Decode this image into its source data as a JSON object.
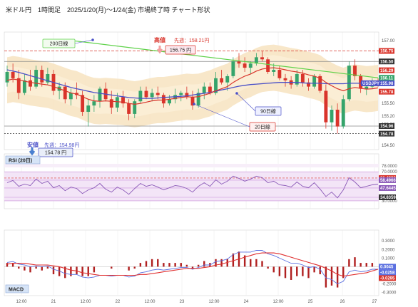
{
  "title": "米ドル円　1時間足　2025/1/20(月)〜1/24(金) 市場終了時 チャート形状",
  "colors": {
    "up": "#35a46b",
    "down": "#d9342b",
    "ma20": "#d9342b",
    "ma90": "#4a50c8",
    "ma200": "#5fd24a",
    "band": "#f7e3bf",
    "rsi_bg": "#f3e5f7",
    "macd_line": "#5a6fe0",
    "signal_line": "#e03030",
    "hist": "#b02020"
  },
  "chart_data": [
    {
      "type": "candlestick",
      "name": "price",
      "x_tick_labels": [
        "12:00",
        "21",
        "12:00",
        "22",
        "12:00",
        "23",
        "12:00",
        "24",
        "12:00",
        "25",
        "26",
        "27"
      ],
      "ylim": [
        154.4,
        157.2
      ],
      "y_tick_labels": [
        "157.00",
        "156.50",
        "156.00",
        "155.50",
        "155.20",
        "155.00",
        "154.50"
      ],
      "price_tags": [
        {
          "text": "156.75",
          "value": 156.75,
          "color": "#d9342b"
        },
        {
          "text": "156.50",
          "value": 156.5,
          "color": "#333333"
        },
        {
          "text": "156.29",
          "value": 156.29,
          "color": "#d9342b"
        },
        {
          "text": "156.11",
          "value": 156.11,
          "color": "#35a46b"
        },
        {
          "text": "155.98",
          "value": 155.98,
          "color": "#4a50c8"
        },
        {
          "text": "155.78",
          "value": 155.78,
          "color": "#d9342b"
        },
        {
          "text": "154.96",
          "value": 154.96,
          "color": "#333333"
        },
        {
          "text": "154.78",
          "value": 154.78,
          "color": "#333333"
        }
      ],
      "symbol_tag": "USDJPY",
      "annotations": {
        "ma200_label": "200日線",
        "ma90_label": "90日線",
        "ma20_label": "20日線",
        "high_label": "高値",
        "high_prev": "先週：158.21円",
        "high_value": "156.75 円",
        "low_label": "安値",
        "low_prev": "先週：154.98円",
        "low_value": "154.78 円"
      },
      "candles": [
        [
          156.0,
          156.4,
          155.9,
          156.25
        ],
        [
          156.25,
          156.45,
          156.0,
          156.1
        ],
        [
          156.1,
          156.3,
          155.6,
          155.75
        ],
        [
          155.75,
          156.2,
          155.7,
          156.05
        ],
        [
          156.05,
          156.3,
          155.8,
          155.9
        ],
        [
          155.9,
          156.4,
          155.85,
          156.3
        ],
        [
          156.3,
          156.4,
          155.9,
          156.0
        ],
        [
          156.0,
          156.35,
          155.95,
          156.2
        ],
        [
          156.2,
          156.3,
          155.7,
          155.8
        ],
        [
          155.8,
          156.0,
          155.6,
          155.9
        ],
        [
          155.9,
          156.0,
          155.5,
          155.6
        ],
        [
          155.6,
          155.85,
          155.45,
          155.75
        ],
        [
          155.75,
          156.0,
          155.6,
          155.7
        ],
        [
          155.7,
          155.8,
          155.2,
          155.3
        ],
        [
          155.3,
          155.6,
          154.95,
          155.45
        ],
        [
          155.45,
          155.7,
          155.3,
          155.55
        ],
        [
          155.55,
          155.9,
          155.4,
          155.85
        ],
        [
          155.85,
          156.0,
          155.55,
          155.6
        ],
        [
          155.6,
          155.8,
          155.25,
          155.4
        ],
        [
          155.4,
          155.75,
          155.3,
          155.65
        ],
        [
          155.65,
          155.8,
          155.4,
          155.5
        ],
        [
          155.5,
          155.6,
          155.1,
          155.25
        ],
        [
          155.25,
          155.6,
          155.15,
          155.55
        ],
        [
          155.55,
          155.9,
          155.5,
          155.8
        ],
        [
          155.8,
          155.9,
          155.6,
          155.65
        ],
        [
          155.65,
          155.85,
          155.55,
          155.75
        ],
        [
          155.75,
          155.9,
          155.6,
          155.7
        ],
        [
          155.7,
          155.75,
          155.4,
          155.5
        ],
        [
          155.5,
          155.7,
          155.45,
          155.6
        ],
        [
          155.6,
          155.85,
          155.5,
          155.7
        ],
        [
          155.7,
          155.8,
          155.55,
          155.75
        ],
        [
          155.75,
          155.9,
          155.6,
          155.65
        ],
        [
          155.65,
          155.8,
          155.35,
          155.45
        ],
        [
          155.45,
          155.85,
          155.4,
          155.75
        ],
        [
          155.75,
          156.0,
          155.6,
          155.9
        ],
        [
          155.9,
          156.0,
          155.7,
          155.75
        ],
        [
          155.75,
          156.25,
          155.7,
          156.1
        ],
        [
          156.1,
          156.3,
          155.95,
          156.0
        ],
        [
          156.0,
          156.2,
          155.8,
          156.15
        ],
        [
          156.15,
          156.6,
          156.1,
          156.5
        ],
        [
          156.5,
          156.7,
          156.35,
          156.45
        ],
        [
          156.45,
          156.6,
          156.25,
          156.35
        ],
        [
          156.35,
          156.5,
          156.2,
          156.45
        ],
        [
          156.45,
          156.7,
          156.4,
          156.6
        ],
        [
          156.6,
          156.75,
          156.5,
          156.55
        ],
        [
          156.55,
          156.6,
          156.2,
          156.25
        ],
        [
          156.25,
          156.45,
          156.15,
          156.3
        ],
        [
          156.3,
          156.4,
          156.05,
          156.1
        ],
        [
          156.1,
          156.2,
          155.9,
          156.05
        ],
        [
          156.05,
          156.15,
          155.85,
          155.95
        ],
        [
          155.95,
          156.3,
          155.9,
          156.2
        ],
        [
          156.2,
          156.3,
          155.9,
          156.0
        ],
        [
          156.0,
          156.1,
          155.8,
          155.9
        ],
        [
          155.9,
          156.2,
          155.85,
          156.15
        ],
        [
          156.15,
          156.2,
          155.75,
          155.8
        ],
        [
          155.8,
          155.95,
          154.9,
          155.05
        ],
        [
          155.05,
          155.45,
          154.85,
          155.35
        ],
        [
          155.35,
          155.5,
          154.78,
          154.95
        ],
        [
          154.95,
          155.7,
          154.9,
          155.6
        ],
        [
          155.6,
          156.5,
          155.55,
          156.4
        ],
        [
          156.4,
          156.55,
          156.05,
          156.15
        ],
        [
          156.15,
          156.2,
          155.75,
          155.85
        ],
        [
          155.85,
          156.0,
          155.7,
          155.9
        ],
        [
          155.9,
          156.1,
          155.85,
          156.0
        ],
        [
          156.0,
          156.1,
          155.9,
          155.98
        ]
      ],
      "ma20": [
        156.05,
        156.08,
        156.06,
        156.03,
        156.0,
        155.98,
        155.96,
        155.94,
        155.9,
        155.85,
        155.8,
        155.75,
        155.72,
        155.66,
        155.6,
        155.56,
        155.55,
        155.56,
        155.55,
        155.54,
        155.53,
        155.5,
        155.48,
        155.5,
        155.53,
        155.56,
        155.58,
        155.58,
        155.6,
        155.62,
        155.64,
        155.66,
        155.65,
        155.66,
        155.7,
        155.74,
        155.8,
        155.85,
        155.9,
        156.0,
        156.08,
        156.15,
        156.2,
        156.27,
        156.32,
        156.34,
        156.35,
        156.33,
        156.3,
        156.27,
        156.25,
        156.22,
        156.18,
        156.15,
        156.1,
        156.0,
        155.92,
        155.85,
        155.8,
        155.85,
        155.88,
        155.86,
        155.84,
        155.85,
        155.87
      ],
      "ma90": [
        156.3,
        156.27,
        156.24,
        156.2,
        156.16,
        156.12,
        156.08,
        156.04,
        156.0,
        155.96,
        155.92,
        155.88,
        155.85,
        155.82,
        155.79,
        155.76,
        155.74,
        155.72,
        155.7,
        155.68,
        155.66,
        155.64,
        155.63,
        155.62,
        155.62,
        155.62,
        155.63,
        155.64,
        155.65,
        155.66,
        155.67,
        155.68,
        155.7,
        155.72,
        155.74,
        155.76,
        155.79,
        155.82,
        155.85,
        155.88,
        155.91,
        155.93,
        155.95,
        155.96,
        155.97,
        155.98,
        155.99,
        156.0,
        156.0,
        156.0,
        156.0,
        155.99,
        155.98,
        155.98,
        155.98,
        155.97,
        155.97,
        155.97,
        155.97,
        155.98,
        155.98,
        155.98,
        155.98,
        155.98,
        155.98
      ],
      "ma200_segment": {
        "x_start": 11,
        "x_end": 64,
        "y_start": 157.0,
        "y_end": 156.11
      }
    },
    {
      "type": "line",
      "name": "RSI (20日)",
      "ylim": [
        25,
        82
      ],
      "y_tick_labels": [
        "78.0000",
        "70.0000",
        "61.4383",
        "58.4966",
        "47.6445",
        "34.8359",
        "30.0000"
      ],
      "level_tags": [
        {
          "text": "61.4383",
          "value": 61.4383,
          "color": "#d9342b"
        },
        {
          "text": "58.4966",
          "value": 58.4966,
          "color": "#8b5ab8"
        },
        {
          "text": "47.6445",
          "value": 47.6445,
          "color": "#8b5ab8"
        },
        {
          "text": "34.8359",
          "value": 34.8359,
          "color": "#333333"
        }
      ],
      "values": [
        55,
        58,
        50,
        53,
        51,
        60,
        54,
        57,
        48,
        51,
        44,
        49,
        47,
        40,
        45,
        48,
        54,
        46,
        42,
        49,
        45,
        39,
        47,
        54,
        50,
        52,
        49,
        45,
        48,
        51,
        50,
        47,
        42,
        50,
        55,
        50,
        59,
        53,
        57,
        64,
        61,
        57,
        60,
        64,
        62,
        55,
        57,
        52,
        51,
        49,
        56,
        50,
        48,
        55,
        46,
        36,
        42,
        34,
        45,
        62,
        56,
        48,
        50,
        52,
        53
      ]
    },
    {
      "type": "line",
      "name": "MACD",
      "ylim": [
        -0.32,
        0.36
      ],
      "y_tick_labels": [
        "0.3000",
        "0.2000",
        "0.1000",
        "0.0045",
        "-0.1000",
        "-0.2000",
        "-0.3000"
      ],
      "level_tags": [
        {
          "text": "0.0045",
          "value": 0.0045,
          "color": "#5a6fe0"
        },
        {
          "text": "-0.0258",
          "value": -0.0258,
          "color": "#5a6fe0"
        },
        {
          "text": "-0.0295",
          "value": -0.0295,
          "color": "#d9342b"
        }
      ],
      "macd": [
        0.05,
        0.06,
        0.03,
        0.02,
        0.0,
        0.01,
        0.0,
        0.01,
        -0.03,
        -0.05,
        -0.08,
        -0.09,
        -0.09,
        -0.12,
        -0.13,
        -0.12,
        -0.1,
        -0.1,
        -0.11,
        -0.1,
        -0.1,
        -0.12,
        -0.11,
        -0.07,
        -0.06,
        -0.04,
        -0.03,
        -0.04,
        -0.03,
        -0.02,
        -0.01,
        -0.01,
        -0.03,
        -0.01,
        0.02,
        0.02,
        0.06,
        0.07,
        0.09,
        0.14,
        0.17,
        0.17,
        0.17,
        0.19,
        0.19,
        0.15,
        0.13,
        0.1,
        0.07,
        0.04,
        0.04,
        0.02,
        -0.01,
        0.0,
        -0.03,
        -0.13,
        -0.15,
        -0.2,
        -0.17,
        -0.06,
        -0.04,
        -0.06,
        -0.05,
        -0.03,
        -0.03
      ],
      "signal": [
        0.03,
        0.04,
        0.04,
        0.04,
        0.03,
        0.02,
        0.02,
        0.02,
        0.01,
        0.0,
        -0.02,
        -0.04,
        -0.05,
        -0.07,
        -0.08,
        -0.09,
        -0.1,
        -0.1,
        -0.1,
        -0.1,
        -0.1,
        -0.1,
        -0.1,
        -0.09,
        -0.09,
        -0.08,
        -0.07,
        -0.06,
        -0.05,
        -0.04,
        -0.03,
        -0.02,
        -0.02,
        -0.02,
        -0.01,
        0.0,
        0.02,
        0.03,
        0.05,
        0.07,
        0.09,
        0.11,
        0.13,
        0.15,
        0.16,
        0.16,
        0.16,
        0.15,
        0.13,
        0.11,
        0.09,
        0.07,
        0.05,
        0.03,
        0.01,
        -0.02,
        -0.05,
        -0.09,
        -0.11,
        -0.1,
        -0.09,
        -0.08,
        -0.07,
        -0.05,
        -0.03
      ]
    }
  ],
  "macd_label": "MACD"
}
